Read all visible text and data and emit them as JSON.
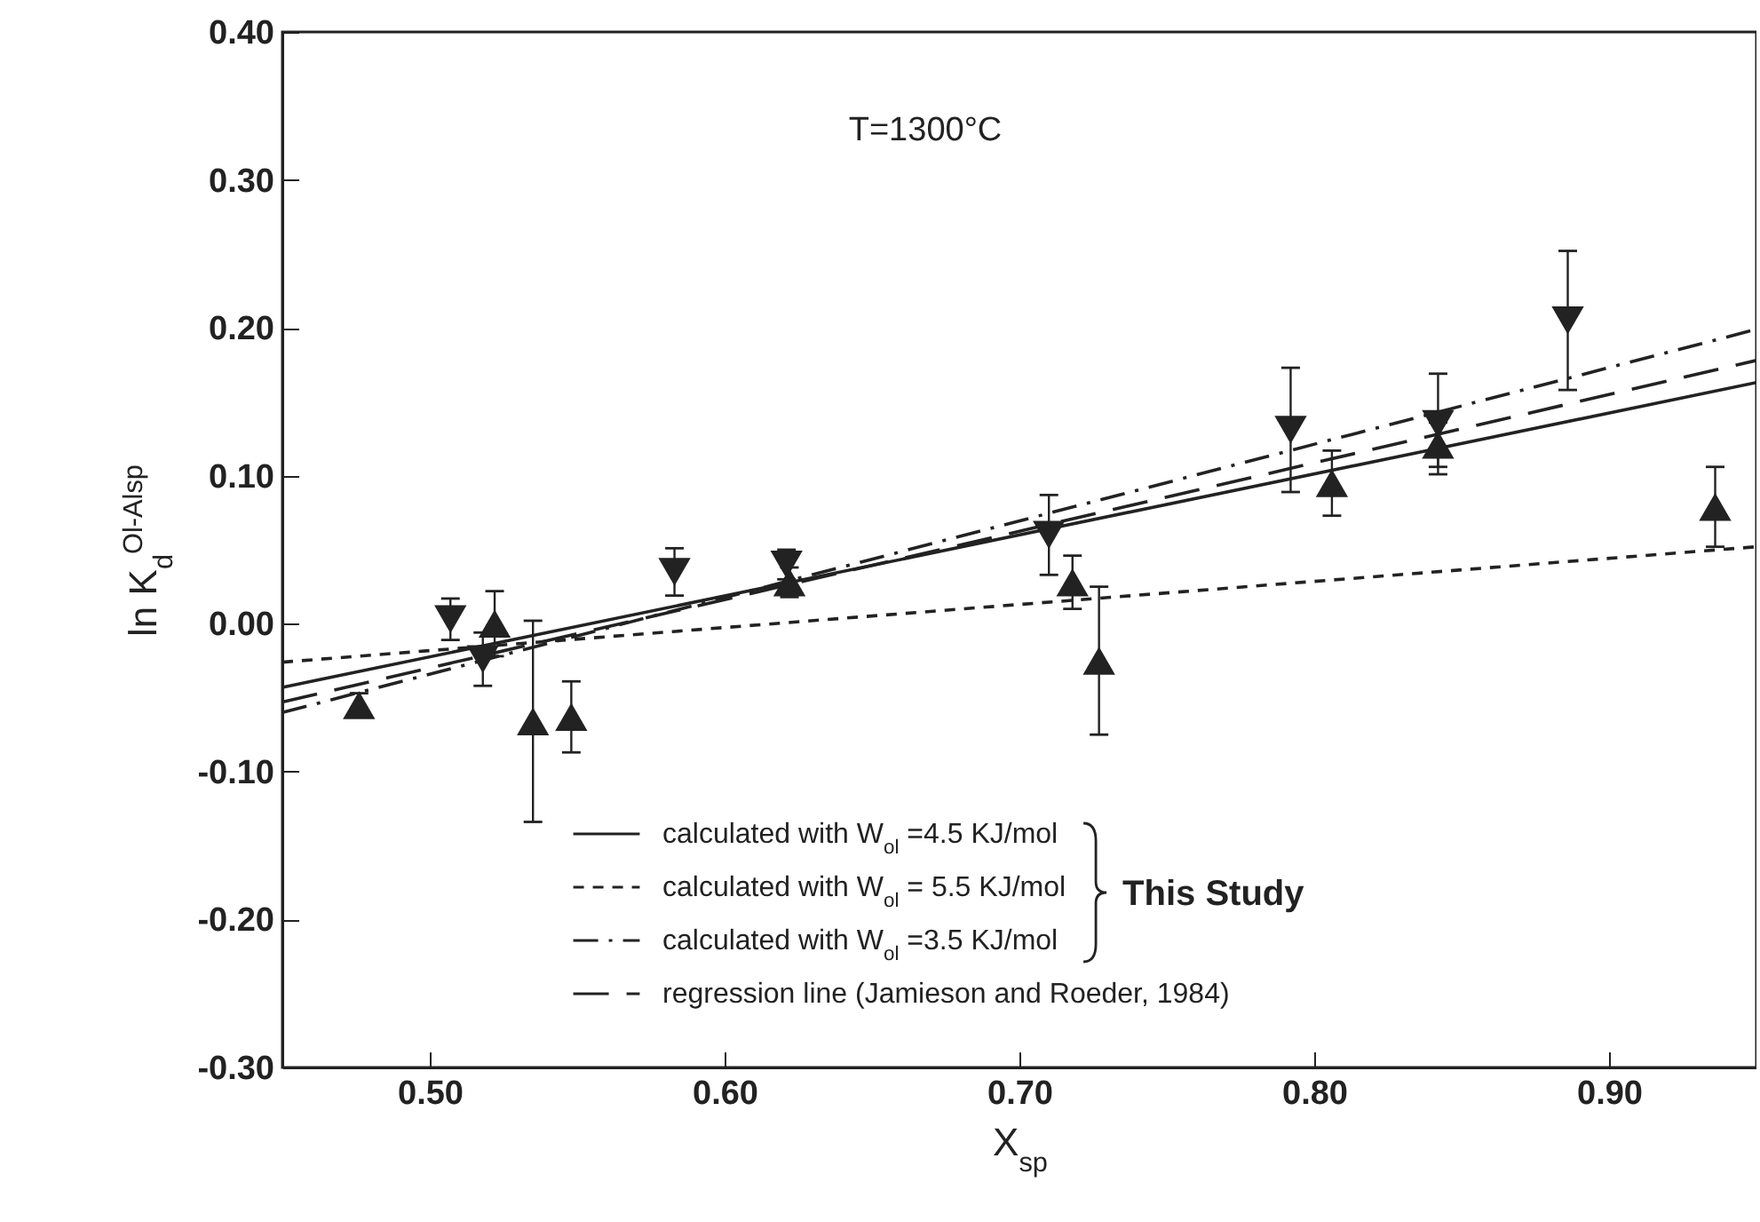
{
  "chart_data": {
    "type": "scatter",
    "xlabel": "X$_{sp}$",
    "ylabel": "ln K$_{d}$$^{Ol-Alsp}$",
    "xlim": [
      0.45,
      0.95
    ],
    "ylim": [
      -0.3,
      0.4
    ],
    "xticks": [
      {
        "value": 0.5,
        "label": "0.50"
      },
      {
        "value": 0.6,
        "label": "0.60"
      },
      {
        "value": 0.7,
        "label": "0.70"
      },
      {
        "value": 0.8,
        "label": "0.80"
      },
      {
        "value": 0.9,
        "label": "0.90"
      }
    ],
    "yticks": [
      {
        "value": -0.3,
        "label": "-0.30"
      },
      {
        "value": -0.2,
        "label": "-0.20"
      },
      {
        "value": -0.1,
        "label": "-0.10"
      },
      {
        "value": 0,
        "label": "0.00"
      },
      {
        "value": 0.1,
        "label": "0.10"
      },
      {
        "value": 0.2,
        "label": "0.20"
      },
      {
        "value": 0.3,
        "label": "0.30"
      },
      {
        "value": 0.4,
        "label": "0.40"
      }
    ],
    "grid": false,
    "legend": "bottom",
    "annotations": [
      "T=1300°C",
      "This Study"
    ],
    "series": [
      {
        "name": "calculated with W$_{ol}$ =4.5 KJ/mol",
        "type": "line",
        "line_style": "solid",
        "color": "#222222",
        "x": [
          0.45,
          0.95
        ],
        "values": [
          -0.043,
          0.163
        ]
      },
      {
        "name": "calculated with W$_{ol}$ = 5.5 KJ/mol",
        "type": "line",
        "line_style": "dashed",
        "color": "#222222",
        "x": [
          0.45,
          0.95
        ],
        "values": [
          -0.026,
          0.052
        ]
      },
      {
        "name": "calculated with W$_{ol}$ =3.5 KJ/mol",
        "type": "line",
        "line_style": "dashdot",
        "color": "#222222",
        "x": [
          0.45,
          0.95
        ],
        "values": [
          -0.06,
          0.199
        ]
      },
      {
        "name": "regression line (Jamieson and Roeder, 1984)",
        "type": "line",
        "line_style": "longdash",
        "color": "#222222",
        "x": [
          0.45,
          0.95
        ],
        "values": [
          -0.053,
          0.178
        ]
      },
      {
        "marker": "triangle",
        "color": "#222222",
        "x": [
          0.476,
          0.522,
          0.535,
          0.548,
          0.622,
          0.718,
          0.727,
          0.806,
          0.842,
          0.936
        ],
        "values": [
          -0.055,
          0.0,
          -0.066,
          -0.063,
          0.028,
          0.028,
          -0.025,
          0.095,
          0.121,
          0.079
        ],
        "errors": [
          0.008,
          0.022,
          0.068,
          0.024,
          0.01,
          0.018,
          0.05,
          0.022,
          0.015,
          0.027
        ]
      },
      {
        "marker": "triangle-down",
        "color": "#222222",
        "x": [
          0.507,
          0.518,
          0.583,
          0.621,
          0.71,
          0.792,
          0.842,
          0.886
        ],
        "values": [
          0.003,
          -0.024,
          0.035,
          0.04,
          0.06,
          0.131,
          0.135,
          0.205
        ],
        "errors": [
          0.014,
          0.018,
          0.016,
          0.01,
          0.027,
          0.042,
          0.034,
          0.047
        ]
      }
    ]
  }
}
